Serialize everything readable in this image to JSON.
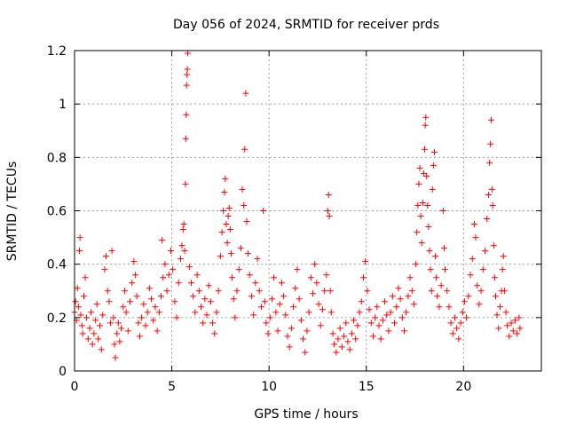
{
  "chart_data": {
    "type": "scatter",
    "title": "Day 056 of 2024, SRMTID for receiver prds",
    "xlabel": "GPS time / hours",
    "ylabel": "SRMTID / TECUs",
    "xlim": [
      0,
      24
    ],
    "ylim": [
      0,
      1.2
    ],
    "xticks": [
      0,
      5,
      10,
      15,
      20
    ],
    "xtick_labels": [
      "0",
      "5",
      "10",
      "15",
      "20"
    ],
    "yticks": [
      0,
      0.2,
      0.4,
      0.6,
      0.8,
      1,
      1.2
    ],
    "ytick_labels": [
      "0",
      "0.2",
      "0.4",
      "0.6",
      "0.8",
      "1",
      "1.2"
    ],
    "grid": true,
    "marker": "+",
    "color": "#ff0000",
    "series": [
      {
        "name": "SRMTID",
        "points": [
          [
            0.0,
            0.22
          ],
          [
            0.05,
            0.26
          ],
          [
            0.1,
            0.19
          ],
          [
            0.15,
            0.31
          ],
          [
            0.2,
            0.24
          ],
          [
            0.25,
            0.45
          ],
          [
            0.28,
            0.5
          ],
          [
            0.32,
            0.21
          ],
          [
            0.38,
            0.17
          ],
          [
            0.42,
            0.14
          ],
          [
            0.48,
            0.28
          ],
          [
            0.55,
            0.35
          ],
          [
            0.62,
            0.2
          ],
          [
            0.7,
            0.12
          ],
          [
            0.78,
            0.16
          ],
          [
            0.85,
            0.22
          ],
          [
            0.92,
            0.1
          ],
          [
            1.0,
            0.14
          ],
          [
            1.08,
            0.19
          ],
          [
            1.15,
            0.25
          ],
          [
            1.22,
            0.12
          ],
          [
            1.3,
            0.17
          ],
          [
            1.38,
            0.08
          ],
          [
            1.45,
            0.21
          ],
          [
            1.55,
            0.38
          ],
          [
            1.62,
            0.43
          ],
          [
            1.7,
            0.3
          ],
          [
            1.78,
            0.26
          ],
          [
            1.85,
            0.18
          ],
          [
            1.92,
            0.45
          ],
          [
            2.0,
            0.2
          ],
          [
            2.05,
            0.1
          ],
          [
            2.1,
            0.05
          ],
          [
            2.18,
            0.14
          ],
          [
            2.25,
            0.18
          ],
          [
            2.32,
            0.11
          ],
          [
            2.4,
            0.16
          ],
          [
            2.5,
            0.24
          ],
          [
            2.58,
            0.3
          ],
          [
            2.65,
            0.22
          ],
          [
            2.75,
            0.15
          ],
          [
            2.85,
            0.26
          ],
          [
            2.95,
            0.33
          ],
          [
            3.05,
            0.41
          ],
          [
            3.12,
            0.36
          ],
          [
            3.2,
            0.28
          ],
          [
            3.28,
            0.18
          ],
          [
            3.35,
            0.13
          ],
          [
            3.45,
            0.2
          ],
          [
            3.55,
            0.25
          ],
          [
            3.65,
            0.17
          ],
          [
            3.75,
            0.22
          ],
          [
            3.85,
            0.31
          ],
          [
            3.95,
            0.27
          ],
          [
            4.05,
            0.19
          ],
          [
            4.15,
            0.24
          ],
          [
            4.25,
            0.15
          ],
          [
            4.35,
            0.22
          ],
          [
            4.45,
            0.28
          ],
          [
            4.5,
            0.49
          ],
          [
            4.55,
            0.35
          ],
          [
            4.65,
            0.4
          ],
          [
            4.75,
            0.3
          ],
          [
            4.85,
            0.36
          ],
          [
            4.95,
            0.45
          ],
          [
            5.05,
            0.38
          ],
          [
            5.15,
            0.26
          ],
          [
            5.25,
            0.2
          ],
          [
            5.35,
            0.33
          ],
          [
            5.45,
            0.42
          ],
          [
            5.52,
            0.47
          ],
          [
            5.58,
            0.53
          ],
          [
            5.62,
            0.55
          ],
          [
            5.66,
            0.45
          ],
          [
            5.7,
            0.7
          ],
          [
            5.72,
            0.87
          ],
          [
            5.74,
            0.96
          ],
          [
            5.76,
            1.07
          ],
          [
            5.78,
            1.11
          ],
          [
            5.8,
            1.13
          ],
          [
            5.82,
            1.19
          ],
          [
            5.9,
            0.39
          ],
          [
            6.0,
            0.33
          ],
          [
            6.1,
            0.28
          ],
          [
            6.2,
            0.22
          ],
          [
            6.3,
            0.36
          ],
          [
            6.4,
            0.3
          ],
          [
            6.5,
            0.24
          ],
          [
            6.6,
            0.18
          ],
          [
            6.7,
            0.27
          ],
          [
            6.8,
            0.21
          ],
          [
            6.9,
            0.32
          ],
          [
            7.0,
            0.26
          ],
          [
            7.1,
            0.18
          ],
          [
            7.2,
            0.14
          ],
          [
            7.3,
            0.22
          ],
          [
            7.4,
            0.3
          ],
          [
            7.5,
            0.43
          ],
          [
            7.58,
            0.52
          ],
          [
            7.65,
            0.6
          ],
          [
            7.7,
            0.67
          ],
          [
            7.75,
            0.72
          ],
          [
            7.8,
            0.55
          ],
          [
            7.85,
            0.48
          ],
          [
            7.9,
            0.58
          ],
          [
            7.95,
            0.61
          ],
          [
            8.0,
            0.53
          ],
          [
            8.05,
            0.44
          ],
          [
            8.1,
            0.35
          ],
          [
            8.18,
            0.27
          ],
          [
            8.25,
            0.2
          ],
          [
            8.35,
            0.3
          ],
          [
            8.45,
            0.38
          ],
          [
            8.55,
            0.46
          ],
          [
            8.62,
            0.68
          ],
          [
            8.7,
            0.62
          ],
          [
            8.75,
            0.83
          ],
          [
            8.8,
            1.04
          ],
          [
            8.85,
            0.56
          ],
          [
            8.92,
            0.44
          ],
          [
            9.0,
            0.36
          ],
          [
            9.1,
            0.28
          ],
          [
            9.2,
            0.21
          ],
          [
            9.3,
            0.33
          ],
          [
            9.4,
            0.42
          ],
          [
            9.5,
            0.3
          ],
          [
            9.6,
            0.24
          ],
          [
            9.7,
            0.6
          ],
          [
            9.78,
            0.26
          ],
          [
            9.85,
            0.18
          ],
          [
            9.95,
            0.14
          ],
          [
            10.05,
            0.2
          ],
          [
            10.15,
            0.27
          ],
          [
            10.25,
            0.35
          ],
          [
            10.35,
            0.22
          ],
          [
            10.45,
            0.15
          ],
          [
            10.55,
            0.25
          ],
          [
            10.65,
            0.33
          ],
          [
            10.75,
            0.28
          ],
          [
            10.85,
            0.21
          ],
          [
            10.95,
            0.13
          ],
          [
            11.05,
            0.09
          ],
          [
            11.15,
            0.16
          ],
          [
            11.25,
            0.24
          ],
          [
            11.35,
            0.31
          ],
          [
            11.45,
            0.38
          ],
          [
            11.55,
            0.27
          ],
          [
            11.65,
            0.19
          ],
          [
            11.75,
            0.12
          ],
          [
            11.85,
            0.07
          ],
          [
            11.95,
            0.15
          ],
          [
            12.05,
            0.22
          ],
          [
            12.15,
            0.35
          ],
          [
            12.25,
            0.29
          ],
          [
            12.35,
            0.4
          ],
          [
            12.45,
            0.33
          ],
          [
            12.55,
            0.25
          ],
          [
            12.65,
            0.17
          ],
          [
            12.75,
            0.23
          ],
          [
            12.85,
            0.3
          ],
          [
            12.95,
            0.36
          ],
          [
            13.02,
            0.6
          ],
          [
            13.06,
            0.66
          ],
          [
            13.1,
            0.58
          ],
          [
            13.15,
            0.3
          ],
          [
            13.2,
            0.22
          ],
          [
            13.28,
            0.14
          ],
          [
            13.35,
            0.1
          ],
          [
            13.45,
            0.07
          ],
          [
            13.55,
            0.12
          ],
          [
            13.65,
            0.16
          ],
          [
            13.75,
            0.09
          ],
          [
            13.85,
            0.13
          ],
          [
            13.95,
            0.18
          ],
          [
            14.05,
            0.11
          ],
          [
            14.15,
            0.08
          ],
          [
            14.25,
            0.14
          ],
          [
            14.35,
            0.19
          ],
          [
            14.45,
            0.12
          ],
          [
            14.55,
            0.17
          ],
          [
            14.65,
            0.22
          ],
          [
            14.75,
            0.26
          ],
          [
            14.85,
            0.35
          ],
          [
            14.95,
            0.41
          ],
          [
            15.05,
            0.3
          ],
          [
            15.15,
            0.23
          ],
          [
            15.25,
            0.18
          ],
          [
            15.35,
            0.13
          ],
          [
            15.45,
            0.2
          ],
          [
            15.55,
            0.24
          ],
          [
            15.65,
            0.17
          ],
          [
            15.75,
            0.12
          ],
          [
            15.85,
            0.19
          ],
          [
            15.95,
            0.26
          ],
          [
            16.05,
            0.21
          ],
          [
            16.15,
            0.15
          ],
          [
            16.25,
            0.22
          ],
          [
            16.35,
            0.28
          ],
          [
            16.45,
            0.18
          ],
          [
            16.55,
            0.24
          ],
          [
            16.65,
            0.31
          ],
          [
            16.75,
            0.27
          ],
          [
            16.85,
            0.2
          ],
          [
            16.95,
            0.15
          ],
          [
            17.05,
            0.22
          ],
          [
            17.15,
            0.28
          ],
          [
            17.25,
            0.35
          ],
          [
            17.35,
            0.3
          ],
          [
            17.45,
            0.25
          ],
          [
            17.55,
            0.4
          ],
          [
            17.6,
            0.52
          ],
          [
            17.65,
            0.62
          ],
          [
            17.7,
            0.7
          ],
          [
            17.75,
            0.76
          ],
          [
            17.8,
            0.58
          ],
          [
            17.85,
            0.48
          ],
          [
            17.9,
            0.63
          ],
          [
            17.95,
            0.74
          ],
          [
            18.0,
            0.83
          ],
          [
            18.03,
            0.92
          ],
          [
            18.06,
            0.95
          ],
          [
            18.1,
            0.73
          ],
          [
            18.15,
            0.62
          ],
          [
            18.2,
            0.54
          ],
          [
            18.25,
            0.45
          ],
          [
            18.3,
            0.38
          ],
          [
            18.35,
            0.3
          ],
          [
            18.4,
            0.68
          ],
          [
            18.45,
            0.77
          ],
          [
            18.5,
            0.82
          ],
          [
            18.55,
            0.43
          ],
          [
            18.6,
            0.35
          ],
          [
            18.65,
            0.28
          ],
          [
            18.75,
            0.24
          ],
          [
            18.85,
            0.32
          ],
          [
            18.95,
            0.6
          ],
          [
            19.0,
            0.46
          ],
          [
            19.05,
            0.38
          ],
          [
            19.15,
            0.3
          ],
          [
            19.25,
            0.24
          ],
          [
            19.35,
            0.18
          ],
          [
            19.45,
            0.14
          ],
          [
            19.55,
            0.2
          ],
          [
            19.65,
            0.16
          ],
          [
            19.75,
            0.12
          ],
          [
            19.85,
            0.18
          ],
          [
            19.95,
            0.22
          ],
          [
            20.05,
            0.26
          ],
          [
            20.15,
            0.2
          ],
          [
            20.25,
            0.28
          ],
          [
            20.35,
            0.36
          ],
          [
            20.45,
            0.42
          ],
          [
            20.55,
            0.55
          ],
          [
            20.62,
            0.5
          ],
          [
            20.7,
            0.32
          ],
          [
            20.8,
            0.25
          ],
          [
            20.9,
            0.3
          ],
          [
            21.0,
            0.38
          ],
          [
            21.1,
            0.45
          ],
          [
            21.2,
            0.57
          ],
          [
            21.28,
            0.66
          ],
          [
            21.34,
            0.78
          ],
          [
            21.38,
            0.85
          ],
          [
            21.42,
            0.94
          ],
          [
            21.46,
            0.68
          ],
          [
            21.5,
            0.62
          ],
          [
            21.55,
            0.47
          ],
          [
            21.6,
            0.35
          ],
          [
            21.65,
            0.28
          ],
          [
            21.72,
            0.21
          ],
          [
            21.8,
            0.16
          ],
          [
            21.88,
            0.24
          ],
          [
            21.95,
            0.3
          ],
          [
            22.0,
            0.38
          ],
          [
            22.05,
            0.43
          ],
          [
            22.1,
            0.3
          ],
          [
            22.18,
            0.22
          ],
          [
            22.25,
            0.17
          ],
          [
            22.35,
            0.13
          ],
          [
            22.45,
            0.18
          ],
          [
            22.55,
            0.15
          ],
          [
            22.65,
            0.19
          ],
          [
            22.75,
            0.14
          ],
          [
            22.85,
            0.2
          ],
          [
            22.9,
            0.16
          ]
        ]
      }
    ]
  }
}
